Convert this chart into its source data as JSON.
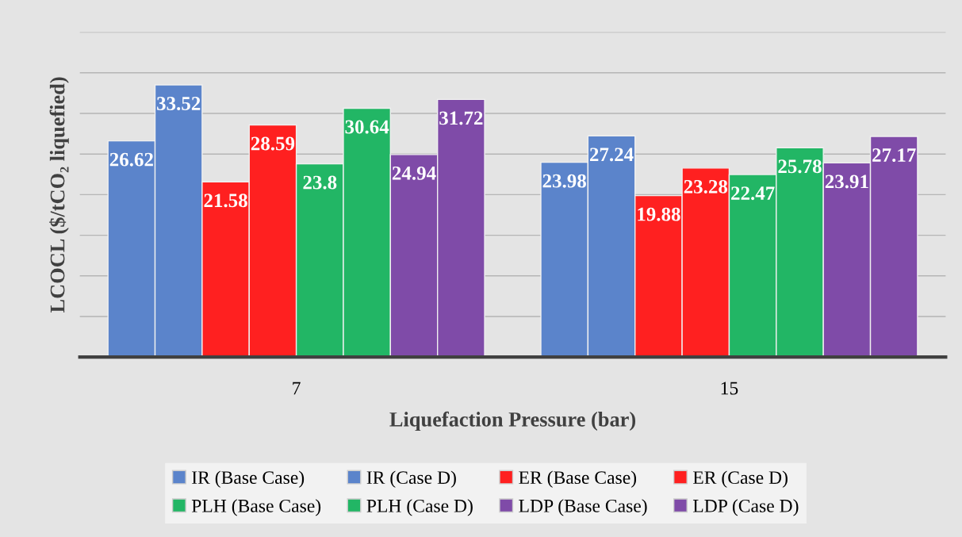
{
  "chart_data": {
    "type": "bar",
    "xlabel": "Liquefaction Pressure (bar)",
    "ylabel": "LCOCL ($/tCO₂ liquefied)",
    "categories": [
      "7",
      "15"
    ],
    "series": [
      {
        "name": "IR (Base Case)",
        "color": "#5b84cb",
        "values": [
          26.62,
          23.98
        ]
      },
      {
        "name": "IR (Case D)",
        "color": "#5b84cb",
        "values": [
          33.52,
          27.24
        ]
      },
      {
        "name": "ER (Base Case)",
        "color": "#ff2020",
        "values": [
          21.58,
          19.88
        ]
      },
      {
        "name": "ER (Case D)",
        "color": "#ff2020",
        "values": [
          28.59,
          23.28
        ]
      },
      {
        "name": "PLH (Base Case)",
        "color": "#22b665",
        "values": [
          23.8,
          22.47
        ]
      },
      {
        "name": "PLH (Case D)",
        "color": "#22b665",
        "values": [
          30.64,
          25.78
        ]
      },
      {
        "name": "LDP (Base Case)",
        "color": "#7f4ba8",
        "values": [
          24.94,
          23.91
        ]
      },
      {
        "name": "LDP (Case D)",
        "color": "#7f4ba8",
        "values": [
          31.72,
          27.17
        ]
      }
    ],
    "ylim": [
      0,
      40
    ],
    "yticks": [
      {
        "value": 0,
        "label": null
      },
      {
        "value": 5,
        "label": null
      },
      {
        "value": 10,
        "label": null
      },
      {
        "value": 15,
        "label": null
      },
      {
        "value": 20,
        "label": null
      },
      {
        "value": 25,
        "label": null
      },
      {
        "value": 30,
        "label": null
      },
      {
        "value": 35,
        "label": null
      },
      {
        "value": 40,
        "label": null
      }
    ],
    "tick_labels": "x",
    "grid": "y",
    "legend": "bottom",
    "data_labels": true
  }
}
